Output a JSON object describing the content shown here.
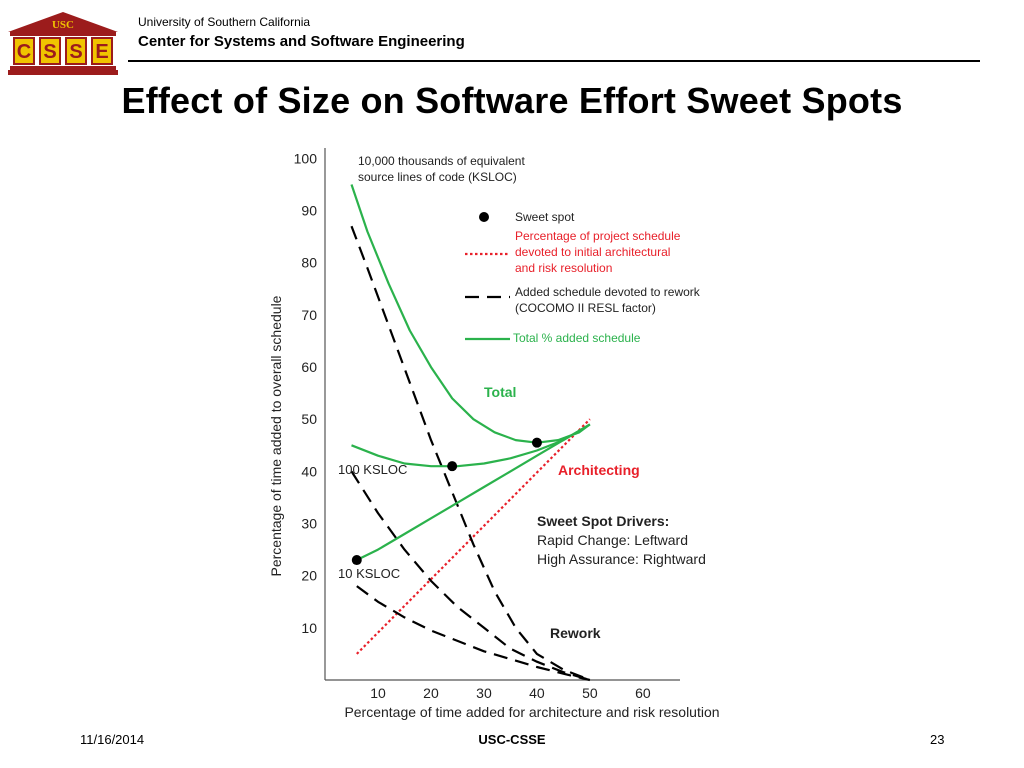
{
  "header": {
    "logo": {
      "top_text": "USC",
      "letters": [
        "C",
        "S",
        "S",
        "E"
      ]
    },
    "university": "University of Southern California",
    "center": "Center for Systems and Software Engineering"
  },
  "slide": {
    "title": "Effect of Size on Software Effort Sweet Spots"
  },
  "chart_data": {
    "type": "line",
    "xlabel": "Percentage of time added for architecture and risk resolution",
    "ylabel": "Percentage of time added to overall schedule",
    "xlim": [
      0,
      67
    ],
    "ylim": [
      0,
      102
    ],
    "x_ticks": [
      10,
      20,
      30,
      40,
      50,
      60
    ],
    "y_ticks": [
      10,
      20,
      30,
      40,
      50,
      60,
      70,
      80,
      90,
      100
    ],
    "grid": false,
    "legend_position": "top-right",
    "legend": {
      "sweet_spot": "Sweet spot",
      "architecting": [
        "Percentage of project schedule",
        "devoted to initial architectural",
        "and risk resolution"
      ],
      "rework": [
        "Added schedule devoted to rework",
        "(COCOMO II RESL factor)"
      ],
      "total": "Total % added schedule"
    },
    "colors": {
      "total": "#2bb24c",
      "architecting": "#e8202a",
      "rework": "#000000"
    },
    "series": [
      {
        "name": "Architecting",
        "style": "dotted-red",
        "points": [
          [
            6,
            5
          ],
          [
            50,
            50
          ]
        ]
      },
      {
        "style": "dashed-black",
        "points": [
          [
            5,
            87
          ],
          [
            8,
            79
          ],
          [
            12,
            68
          ],
          [
            16,
            57
          ],
          [
            20,
            46
          ],
          [
            24,
            36
          ],
          [
            28,
            26
          ],
          [
            32,
            17
          ],
          [
            36,
            10
          ],
          [
            40,
            5
          ],
          [
            45,
            2
          ],
          [
            50,
            0
          ]
        ]
      },
      {
        "style": "dashed-black",
        "points": [
          [
            5,
            40
          ],
          [
            10,
            32
          ],
          [
            15,
            25
          ],
          [
            20,
            19
          ],
          [
            25,
            14
          ],
          [
            30,
            10
          ],
          [
            35,
            6
          ],
          [
            40,
            3.5
          ],
          [
            45,
            1.5
          ],
          [
            50,
            0
          ]
        ]
      },
      {
        "style": "dashed-black",
        "points": [
          [
            6,
            18
          ],
          [
            10,
            15
          ],
          [
            15,
            12
          ],
          [
            20,
            9.5
          ],
          [
            25,
            7.5
          ],
          [
            30,
            5.5
          ],
          [
            35,
            4
          ],
          [
            40,
            2.5
          ],
          [
            45,
            1.2
          ],
          [
            50,
            0
          ]
        ]
      },
      {
        "style": "solid-green",
        "points": [
          [
            5,
            95
          ],
          [
            8,
            86
          ],
          [
            12,
            76
          ],
          [
            16,
            67
          ],
          [
            20,
            60
          ],
          [
            24,
            54
          ],
          [
            28,
            50
          ],
          [
            32,
            47.5
          ],
          [
            36,
            46
          ],
          [
            40,
            45.5
          ],
          [
            44,
            46
          ],
          [
            48,
            47.5
          ],
          [
            50,
            49
          ]
        ]
      },
      {
        "style": "solid-green",
        "points": [
          [
            5,
            45
          ],
          [
            10,
            43
          ],
          [
            15,
            41.5
          ],
          [
            20,
            41
          ],
          [
            25,
            41
          ],
          [
            30,
            41.5
          ],
          [
            35,
            42.5
          ],
          [
            40,
            44
          ],
          [
            45,
            46
          ],
          [
            50,
            49
          ]
        ]
      },
      {
        "style": "solid-green",
        "points": [
          [
            6,
            23
          ],
          [
            10,
            25
          ],
          [
            15,
            28
          ],
          [
            20,
            31
          ],
          [
            25,
            34
          ],
          [
            30,
            37
          ],
          [
            35,
            40
          ],
          [
            40,
            43
          ],
          [
            45,
            46
          ],
          [
            50,
            49
          ]
        ]
      }
    ],
    "sweet_spots": [
      [
        40,
        45.5
      ],
      [
        24,
        41
      ],
      [
        6,
        23
      ]
    ],
    "annotations": {
      "top_note": [
        "10,000 thousands of equivalent",
        "source lines of code (KSLOC)"
      ],
      "total": "Total",
      "architecting": "Architecting",
      "rework": "Rework",
      "ksloc_100": "100 KSLOC",
      "ksloc_10": "10 KSLOC",
      "drivers_title": "Sweet Spot Drivers:",
      "drivers": [
        "Rapid Change: Leftward",
        "High Assurance: Rightward"
      ]
    }
  },
  "footer": {
    "date": "11/16/2014",
    "org": "USC-CSSE",
    "page": "23"
  }
}
